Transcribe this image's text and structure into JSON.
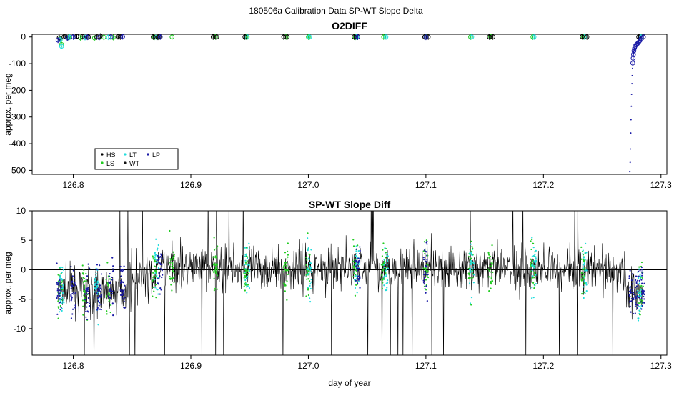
{
  "figure": {
    "suptitle": "180506a   Calibration Data SP-WT Slope Delta",
    "xlabel": "day of year"
  },
  "colors": {
    "HS": "#000000",
    "LS": "#22cc22",
    "LT": "#22dddd",
    "WT": "#111111",
    "LP": "#1a1aa6",
    "trace": "#000000",
    "axis": "#000000"
  },
  "chart_data": [
    {
      "type": "scatter",
      "title": "O2DIFF",
      "ylabel": "approx. per meg",
      "xlim": [
        126.765,
        127.305
      ],
      "ylim": [
        -515,
        10
      ],
      "xticks": [
        126.8,
        126.9,
        127.0,
        127.1,
        127.2,
        127.3
      ],
      "xtick_labels": [
        "126.8",
        "126.9",
        "127.0",
        "127.1",
        "127.2",
        "127.3"
      ],
      "yticks": [
        0,
        -100,
        -200,
        -300,
        -400,
        -500
      ],
      "ytick_labels": [
        "0",
        "-100",
        "-200",
        "-300",
        "-400",
        "-500"
      ],
      "legend": {
        "position": "bottom-left",
        "entries": [
          {
            "name": "HS",
            "color_key": "HS",
            "symbol": "•"
          },
          {
            "name": "LT",
            "color_key": "LT",
            "symbol": "•"
          },
          {
            "name": "LP",
            "color_key": "LP",
            "symbol": "•"
          },
          {
            "name": "LS",
            "color_key": "LS",
            "symbol": "•"
          },
          {
            "name": "WT",
            "color_key": "WT",
            "symbol": "•"
          }
        ]
      },
      "series": [
        {
          "name": "LS",
          "color_key": "LS",
          "points": [
            [
              126.789,
              -6
            ],
            [
              126.79,
              -28
            ],
            [
              126.796,
              -2
            ],
            [
              126.806,
              -3
            ],
            [
              126.818,
              -4
            ],
            [
              126.826,
              -1
            ],
            [
              126.834,
              -2
            ],
            [
              126.869,
              -1
            ],
            [
              126.884,
              0
            ],
            [
              126.921,
              0
            ],
            [
              126.947,
              0
            ],
            [
              126.981,
              0
            ],
            [
              127.0,
              0
            ],
            [
              127.04,
              -1
            ],
            [
              127.064,
              0
            ],
            [
              127.1,
              0
            ],
            [
              127.138,
              0
            ],
            [
              127.155,
              1
            ],
            [
              127.191,
              0
            ],
            [
              127.234,
              1
            ]
          ]
        },
        {
          "name": "LT",
          "color_key": "LT",
          "points": [
            [
              126.789,
              -10
            ],
            [
              126.79,
              -35
            ],
            [
              126.797,
              -1
            ],
            [
              126.81,
              -2
            ],
            [
              126.83,
              -1
            ],
            [
              126.871,
              -1
            ],
            [
              126.948,
              0
            ],
            [
              127.001,
              0
            ],
            [
              127.041,
              0
            ],
            [
              127.066,
              0
            ],
            [
              127.139,
              0
            ],
            [
              127.192,
              0
            ],
            [
              127.235,
              0
            ],
            [
              127.283,
              0
            ]
          ]
        },
        {
          "name": "HS",
          "color_key": "HS",
          "points": [
            [
              126.788,
              -3
            ],
            [
              126.793,
              2
            ],
            [
              126.803,
              2
            ],
            [
              126.813,
              0
            ],
            [
              126.823,
              3
            ],
            [
              126.838,
              1
            ],
            [
              126.868,
              0
            ],
            [
              126.872,
              -1
            ],
            [
              126.919,
              0
            ],
            [
              126.946,
              0
            ],
            [
              126.979,
              0
            ],
            [
              127.039,
              0
            ],
            [
              127.099,
              0
            ],
            [
              127.154,
              0
            ],
            [
              127.233,
              1
            ],
            [
              127.281,
              0
            ]
          ]
        },
        {
          "name": "WT",
          "color_key": "WT",
          "points": [
            [
              126.792,
              0
            ],
            [
              126.808,
              1
            ],
            [
              126.82,
              0
            ],
            [
              126.84,
              0
            ],
            [
              126.873,
              0
            ],
            [
              126.922,
              0
            ],
            [
              126.982,
              0
            ],
            [
              127.042,
              0
            ],
            [
              127.102,
              0
            ],
            [
              127.157,
              0
            ],
            [
              127.237,
              0
            ],
            [
              127.285,
              0
            ]
          ]
        },
        {
          "name": "LP",
          "color_key": "LP",
          "points": [
            [
              126.787,
              -12
            ],
            [
              126.795,
              -4
            ],
            [
              126.8,
              0
            ],
            [
              126.812,
              -1
            ],
            [
              126.822,
              -2
            ],
            [
              126.832,
              0
            ],
            [
              126.842,
              1
            ],
            [
              126.874,
              0
            ],
            [
              127.042,
              0
            ],
            [
              127.1,
              -1
            ],
            [
              127.2735,
              -505
            ],
            [
              127.2738,
              -470
            ],
            [
              127.274,
              -420
            ],
            [
              127.2743,
              -360
            ],
            [
              127.2745,
              -310
            ],
            [
              127.2748,
              -260
            ],
            [
              127.275,
              -215
            ],
            [
              127.2753,
              -175
            ],
            [
              127.2755,
              -145
            ],
            [
              127.2758,
              -118
            ],
            [
              127.276,
              -98
            ],
            [
              127.2763,
              -80
            ],
            [
              127.2766,
              -65
            ],
            [
              127.277,
              -52
            ],
            [
              127.2775,
              -42
            ],
            [
              127.278,
              -35
            ],
            [
              127.279,
              -29
            ],
            [
              127.28,
              -25
            ],
            [
              127.281,
              -20
            ],
            [
              127.282,
              -14
            ],
            [
              127.283,
              -6
            ],
            [
              127.285,
              0
            ]
          ]
        }
      ]
    },
    {
      "type": "line",
      "title": "SP-WT Slope Diff",
      "ylabel": "approx. per meg",
      "xlim": [
        126.765,
        127.305
      ],
      "ylim": [
        -14.5,
        10
      ],
      "hline": 0,
      "xticks": [
        126.8,
        126.9,
        127.0,
        127.1,
        127.2,
        127.3
      ],
      "xtick_labels": [
        "126.8",
        "126.9",
        "127.0",
        "127.1",
        "127.2",
        "127.3"
      ],
      "yticks": [
        10,
        5,
        0,
        -5,
        -10
      ],
      "ytick_labels": [
        "10",
        "5",
        "0",
        "-5",
        "-10"
      ],
      "series": [
        {
          "name": "WT",
          "color_key": "trace",
          "x_range": [
            126.787,
            127.285
          ],
          "mean_segments": [
            [
              126.787,
              126.848,
              -3.5
            ],
            [
              126.848,
              126.87,
              -1.5
            ],
            [
              126.87,
              127.27,
              0.3
            ],
            [
              127.27,
              127.285,
              -3.5
            ]
          ],
          "noise_sd": 3.2
        },
        {
          "name": "LS",
          "color_key": "LS",
          "clusters": [
            126.789,
            126.81,
            126.83,
            126.869,
            126.884,
            126.921,
            126.947,
            126.981,
            127.0,
            127.04,
            127.064,
            127.1,
            127.138,
            127.155,
            127.191,
            127.234,
            127.283
          ]
        },
        {
          "name": "LT",
          "color_key": "LT",
          "clusters": [
            126.79,
            126.82,
            126.871,
            126.948,
            127.001,
            127.041,
            127.066,
            127.139,
            127.192,
            127.235,
            127.282
          ]
        },
        {
          "name": "LP",
          "color_key": "LP",
          "clusters": [
            126.788,
            126.8,
            126.812,
            126.822,
            126.832,
            126.842,
            126.874,
            127.042,
            127.1,
            127.275,
            127.28,
            127.284
          ]
        }
      ]
    }
  ]
}
